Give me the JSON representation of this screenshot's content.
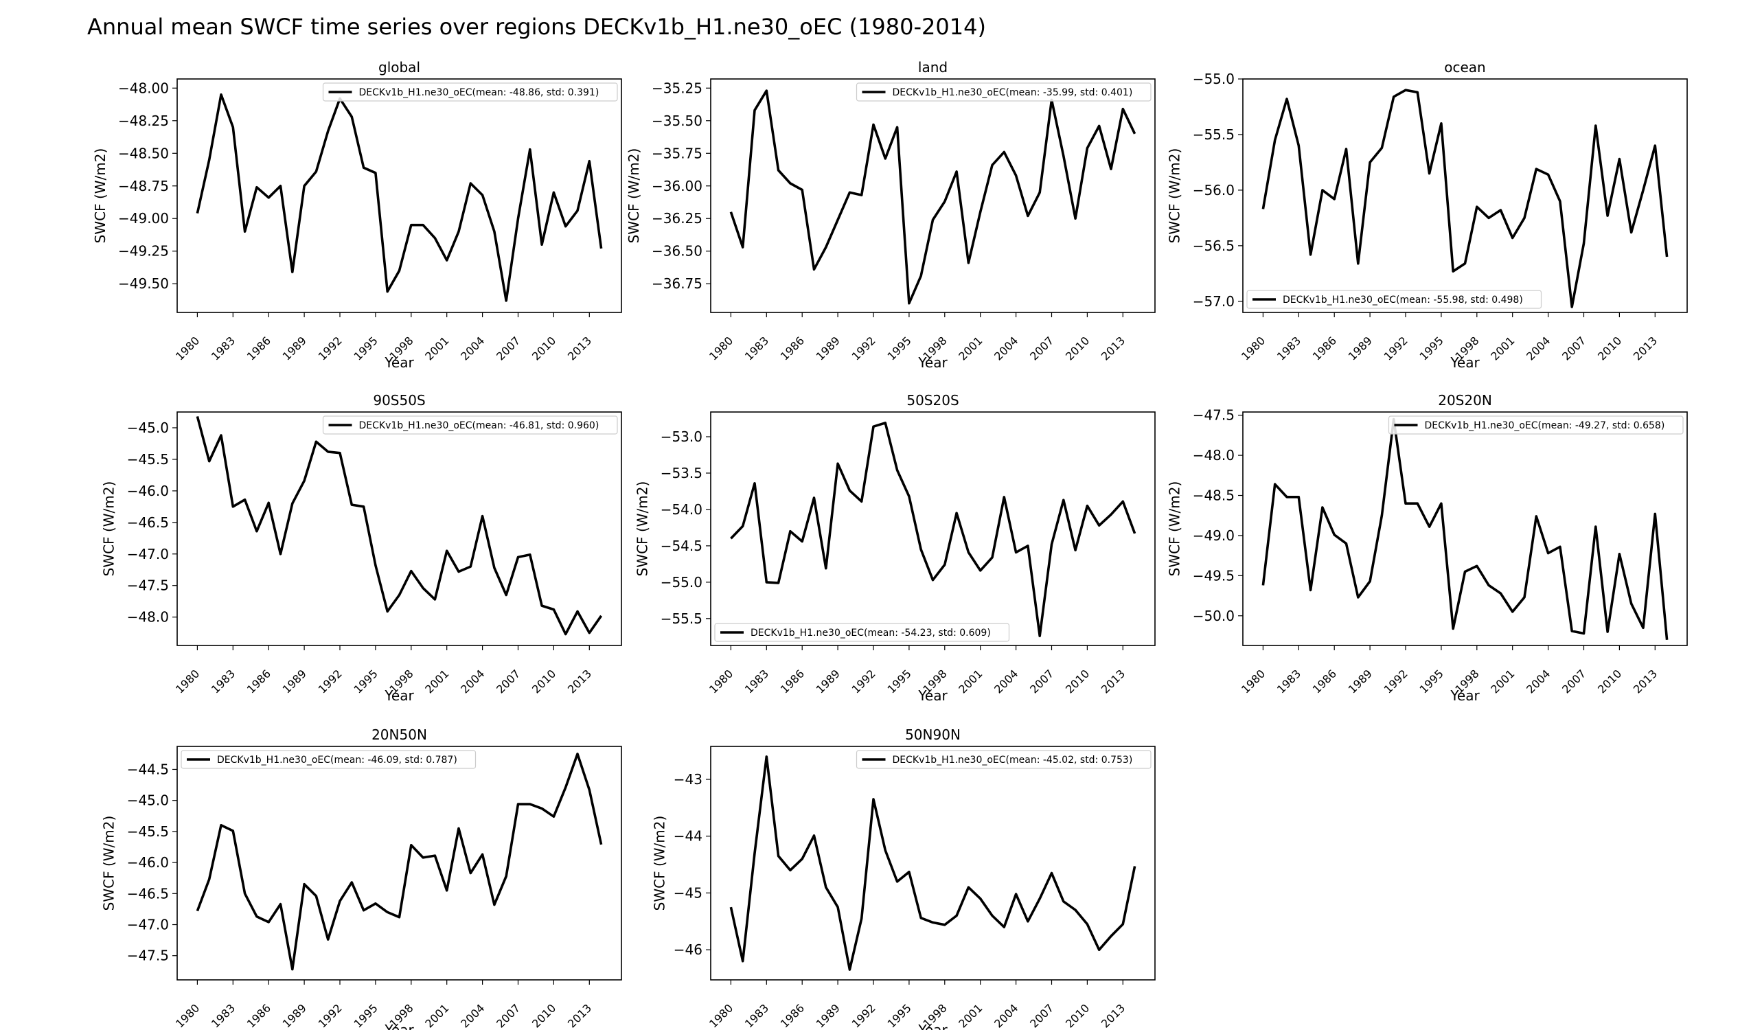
{
  "title": "Annual mean SWCF time series over regions DECKv1b_H1.ne30_oEC (1980-2014)",
  "chart_data": [
    {
      "type": "line",
      "title": "global",
      "xlabel": "Year",
      "ylabel": "SWCF (W/m2)",
      "xlim": [
        1978.3,
        2015.7
      ],
      "ylim": [
        -49.72,
        -47.93
      ],
      "xticks": [
        1980,
        1983,
        1986,
        1989,
        1992,
        1995,
        1998,
        2001,
        2004,
        2007,
        2010,
        2013
      ],
      "yticks": [
        -48.0,
        -48.25,
        -48.5,
        -48.75,
        -49.0,
        -49.25,
        -49.5
      ],
      "ytick_labels": [
        "−48.00",
        "−48.25",
        "−48.50",
        "−48.75",
        "−49.00",
        "−49.25",
        "−49.50"
      ],
      "legend_loc": "upper right",
      "series": [
        {
          "name": "DECKv1b_H1.ne30_oEC(mean: -48.86, std: 0.391)",
          "color": "#000000",
          "x": [
            1980,
            1981,
            1982,
            1983,
            1984,
            1985,
            1986,
            1987,
            1988,
            1989,
            1990,
            1991,
            1992,
            1993,
            1994,
            1995,
            1996,
            1997,
            1998,
            1999,
            2000,
            2001,
            2002,
            2003,
            2004,
            2005,
            2006,
            2007,
            2008,
            2009,
            2010,
            2011,
            2012,
            2013,
            2014
          ],
          "values": [
            -48.96,
            -48.55,
            -48.05,
            -48.3,
            -49.1,
            -48.76,
            -48.84,
            -48.75,
            -49.41,
            -48.75,
            -48.64,
            -48.33,
            -48.08,
            -48.22,
            -48.61,
            -48.65,
            -49.56,
            -49.4,
            -49.05,
            -49.05,
            -49.15,
            -49.32,
            -49.1,
            -48.73,
            -48.82,
            -49.1,
            -49.63,
            -49.0,
            -48.47,
            -49.2,
            -48.8,
            -49.06,
            -48.94,
            -48.56,
            -49.23
          ]
        }
      ]
    },
    {
      "type": "line",
      "title": "land",
      "xlabel": "Year",
      "ylabel": "SWCF (W/m2)",
      "xlim": [
        1978.3,
        2015.7
      ],
      "ylim": [
        -36.97,
        -35.18
      ],
      "xticks": [
        1980,
        1983,
        1986,
        1989,
        1992,
        1995,
        1998,
        2001,
        2004,
        2007,
        2010,
        2013
      ],
      "yticks": [
        -35.25,
        -35.5,
        -35.75,
        -36.0,
        -36.25,
        -36.5,
        -36.75
      ],
      "ytick_labels": [
        "−35.25",
        "−35.50",
        "−35.75",
        "−36.00",
        "−36.25",
        "−36.50",
        "−36.75"
      ],
      "legend_loc": "upper right",
      "series": [
        {
          "name": "DECKv1b_H1.ne30_oEC(mean: -35.99, std: 0.401)",
          "color": "#000000",
          "x": [
            1980,
            1981,
            1982,
            1983,
            1984,
            1985,
            1986,
            1987,
            1988,
            1989,
            1990,
            1991,
            1992,
            1993,
            1994,
            1995,
            1996,
            1997,
            1998,
            1999,
            2000,
            2001,
            2002,
            2003,
            2004,
            2005,
            2006,
            2007,
            2008,
            2009,
            2010,
            2011,
            2012,
            2013,
            2014
          ],
          "values": [
            -36.2,
            -36.47,
            -35.42,
            -35.27,
            -35.88,
            -35.98,
            -36.03,
            -36.64,
            -36.47,
            -36.26,
            -36.05,
            -36.07,
            -35.53,
            -35.79,
            -35.55,
            -36.9,
            -36.69,
            -36.26,
            -36.12,
            -35.89,
            -36.59,
            -36.2,
            -35.84,
            -35.74,
            -35.92,
            -36.23,
            -36.05,
            -35.34,
            -35.77,
            -36.25,
            -35.71,
            -35.54,
            -35.87,
            -35.41,
            -35.6
          ]
        }
      ]
    },
    {
      "type": "line",
      "title": "ocean",
      "xlabel": "Year",
      "ylabel": "SWCF (W/m2)",
      "xlim": [
        1978.3,
        2015.7
      ],
      "ylim": [
        -57.1,
        -55.0
      ],
      "xticks": [
        1980,
        1983,
        1986,
        1989,
        1992,
        1995,
        1998,
        2001,
        2004,
        2007,
        2010,
        2013
      ],
      "yticks": [
        -55.0,
        -55.5,
        -56.0,
        -56.5,
        -57.0
      ],
      "ytick_labels": [
        "−55.0",
        "−55.5",
        "−56.0",
        "−56.5",
        "−57.0"
      ],
      "legend_loc": "lower left",
      "series": [
        {
          "name": "DECKv1b_H1.ne30_oEC(mean: -55.98, std: 0.498)",
          "color": "#000000",
          "x": [
            1980,
            1981,
            1982,
            1983,
            1984,
            1985,
            1986,
            1987,
            1988,
            1989,
            1990,
            1991,
            1992,
            1993,
            1994,
            1995,
            1996,
            1997,
            1998,
            1999,
            2000,
            2001,
            2002,
            2003,
            2004,
            2005,
            2006,
            2007,
            2008,
            2009,
            2010,
            2011,
            2012,
            2013,
            2014
          ],
          "values": [
            -56.17,
            -55.55,
            -55.18,
            -55.6,
            -56.58,
            -56.0,
            -56.08,
            -55.63,
            -56.66,
            -55.75,
            -55.62,
            -55.16,
            -55.1,
            -55.12,
            -55.85,
            -55.4,
            -56.73,
            -56.66,
            -56.15,
            -56.25,
            -56.18,
            -56.43,
            -56.25,
            -55.81,
            -55.86,
            -56.1,
            -57.05,
            -56.48,
            -55.42,
            -56.23,
            -55.72,
            -56.38,
            -56.0,
            -55.6,
            -56.6
          ]
        }
      ]
    },
    {
      "type": "line",
      "title": "90S50S",
      "xlabel": "Year",
      "ylabel": "SWCF (W/m2)",
      "xlim": [
        1978.3,
        2015.7
      ],
      "ylim": [
        -48.45,
        -44.75
      ],
      "xticks": [
        1980,
        1983,
        1986,
        1989,
        1992,
        1995,
        1998,
        2001,
        2004,
        2007,
        2010,
        2013
      ],
      "yticks": [
        -45.0,
        -45.5,
        -46.0,
        -46.5,
        -47.0,
        -47.5,
        -48.0
      ],
      "ytick_labels": [
        "−45.0",
        "−45.5",
        "−46.0",
        "−46.5",
        "−47.0",
        "−47.5",
        "−48.0"
      ],
      "legend_loc": "upper right",
      "series": [
        {
          "name": "DECKv1b_H1.ne30_oEC(mean: -46.81, std: 0.960)",
          "color": "#000000",
          "x": [
            1980,
            1981,
            1982,
            1983,
            1984,
            1985,
            1986,
            1987,
            1988,
            1989,
            1990,
            1991,
            1992,
            1993,
            1994,
            1995,
            1996,
            1997,
            1998,
            1999,
            2000,
            2001,
            2002,
            2003,
            2004,
            2005,
            2006,
            2007,
            2008,
            2009,
            2010,
            2011,
            2012,
            2013,
            2014
          ],
          "values": [
            -44.82,
            -45.53,
            -45.12,
            -46.25,
            -46.14,
            -46.64,
            -46.19,
            -47.0,
            -46.2,
            -45.84,
            -45.22,
            -45.38,
            -45.4,
            -46.22,
            -46.25,
            -47.18,
            -47.91,
            -47.65,
            -47.27,
            -47.54,
            -47.72,
            -46.95,
            -47.28,
            -47.2,
            -46.4,
            -47.22,
            -47.65,
            -47.05,
            -47.01,
            -47.82,
            -47.88,
            -48.27,
            -47.91,
            -48.25,
            -47.98
          ]
        }
      ]
    },
    {
      "type": "line",
      "title": "50S20S",
      "xlabel": "Year",
      "ylabel": "SWCF (W/m2)",
      "xlim": [
        1978.3,
        2015.7
      ],
      "ylim": [
        -55.87,
        -52.66
      ],
      "xticks": [
        1980,
        1983,
        1986,
        1989,
        1992,
        1995,
        1998,
        2001,
        2004,
        2007,
        2010,
        2013
      ],
      "yticks": [
        -53.0,
        -53.5,
        -54.0,
        -54.5,
        -55.0,
        -55.5
      ],
      "ytick_labels": [
        "−53.0",
        "−53.5",
        "−54.0",
        "−54.5",
        "−55.0",
        "−55.5"
      ],
      "legend_loc": "lower left",
      "series": [
        {
          "name": "DECKv1b_H1.ne30_oEC(mean: -54.23, std: 0.609)",
          "color": "#000000",
          "x": [
            1980,
            1981,
            1982,
            1983,
            1984,
            1985,
            1986,
            1987,
            1988,
            1989,
            1990,
            1991,
            1992,
            1993,
            1994,
            1995,
            1996,
            1997,
            1998,
            1999,
            2000,
            2001,
            2002,
            2003,
            2004,
            2005,
            2006,
            2007,
            2008,
            2009,
            2010,
            2011,
            2012,
            2013,
            2014
          ],
          "values": [
            -54.4,
            -54.23,
            -53.64,
            -55.0,
            -55.01,
            -54.3,
            -54.44,
            -53.84,
            -54.81,
            -53.37,
            -53.74,
            -53.89,
            -52.86,
            -52.81,
            -53.46,
            -53.82,
            -54.55,
            -54.97,
            -54.76,
            -54.05,
            -54.59,
            -54.84,
            -54.66,
            -53.83,
            -54.59,
            -54.5,
            -55.74,
            -54.48,
            -53.87,
            -54.56,
            -53.95,
            -54.22,
            -54.07,
            -53.89,
            -54.33
          ]
        }
      ]
    },
    {
      "type": "line",
      "title": "20S20N",
      "xlabel": "Year",
      "ylabel": "SWCF (W/m2)",
      "xlim": [
        1978.3,
        2015.7
      ],
      "ylim": [
        -50.37,
        -47.46
      ],
      "xticks": [
        1980,
        1983,
        1986,
        1989,
        1992,
        1995,
        1998,
        2001,
        2004,
        2007,
        2010,
        2013
      ],
      "yticks": [
        -47.5,
        -48.0,
        -48.5,
        -49.0,
        -49.5,
        -50.0
      ],
      "ytick_labels": [
        "−47.5",
        "−48.0",
        "−48.5",
        "−49.0",
        "−49.5",
        "−50.0"
      ],
      "legend_loc": "upper right",
      "series": [
        {
          "name": "DECKv1b_H1.ne30_oEC(mean: -49.27, std: 0.658)",
          "color": "#000000",
          "x": [
            1980,
            1981,
            1982,
            1983,
            1984,
            1985,
            1986,
            1987,
            1988,
            1989,
            1990,
            1991,
            1992,
            1993,
            1994,
            1995,
            1996,
            1997,
            1998,
            1999,
            2000,
            2001,
            2002,
            2003,
            2004,
            2005,
            2006,
            2007,
            2008,
            2009,
            2010,
            2011,
            2012,
            2013,
            2014
          ],
          "values": [
            -49.62,
            -48.36,
            -48.52,
            -48.52,
            -49.68,
            -48.65,
            -48.99,
            -49.1,
            -49.77,
            -49.57,
            -48.75,
            -47.55,
            -48.6,
            -48.6,
            -48.89,
            -48.6,
            -50.16,
            -49.45,
            -49.38,
            -49.62,
            -49.72,
            -49.95,
            -49.77,
            -48.76,
            -49.22,
            -49.14,
            -50.19,
            -50.22,
            -48.89,
            -50.2,
            -49.23,
            -49.85,
            -50.15,
            -48.73,
            -50.3
          ]
        }
      ]
    },
    {
      "type": "line",
      "title": "20N50N",
      "xlabel": "Year",
      "ylabel": "SWCF (W/m2)",
      "xlim": [
        1978.3,
        2015.7
      ],
      "ylim": [
        -47.89,
        -44.13
      ],
      "xticks": [
        1980,
        1983,
        1986,
        1989,
        1992,
        1995,
        1998,
        2001,
        2004,
        2007,
        2010,
        2013
      ],
      "yticks": [
        -44.5,
        -45.0,
        -45.5,
        -46.0,
        -46.5,
        -47.0,
        -47.5
      ],
      "ytick_labels": [
        "−44.5",
        "−45.0",
        "−45.5",
        "−46.0",
        "−46.5",
        "−47.0",
        "−47.5"
      ],
      "legend_loc": "upper left",
      "series": [
        {
          "name": "DECKv1b_H1.ne30_oEC(mean: -46.09, std: 0.787)",
          "color": "#000000",
          "x": [
            1980,
            1981,
            1982,
            1983,
            1984,
            1985,
            1986,
            1987,
            1988,
            1989,
            1990,
            1991,
            1992,
            1993,
            1994,
            1995,
            1996,
            1997,
            1998,
            1999,
            2000,
            2001,
            2002,
            2003,
            2004,
            2005,
            2006,
            2007,
            2008,
            2009,
            2010,
            2011,
            2012,
            2013,
            2014
          ],
          "values": [
            -46.78,
            -46.27,
            -45.4,
            -45.49,
            -46.5,
            -46.87,
            -46.96,
            -46.67,
            -47.72,
            -46.35,
            -46.54,
            -47.24,
            -46.62,
            -46.32,
            -46.77,
            -46.66,
            -46.8,
            -46.88,
            -45.72,
            -45.92,
            -45.89,
            -46.45,
            -45.45,
            -46.17,
            -45.87,
            -46.68,
            -46.22,
            -45.06,
            -45.06,
            -45.13,
            -45.26,
            -44.79,
            -44.25,
            -44.83,
            -45.71
          ]
        }
      ]
    },
    {
      "type": "line",
      "title": "50N90N",
      "xlabel": "Year",
      "ylabel": "SWCF (W/m2)",
      "xlim": [
        1978.3,
        2015.7
      ],
      "ylim": [
        -46.53,
        -42.42
      ],
      "xticks": [
        1980,
        1983,
        1986,
        1989,
        1992,
        1995,
        1998,
        2001,
        2004,
        2007,
        2010,
        2013
      ],
      "yticks": [
        -43,
        -44,
        -45,
        -46
      ],
      "ytick_labels": [
        "−43",
        "−44",
        "−45",
        "−46"
      ],
      "legend_loc": "upper right",
      "series": [
        {
          "name": "DECKv1b_H1.ne30_oEC(mean: -45.02, std: 0.753)",
          "color": "#000000",
          "x": [
            1980,
            1981,
            1982,
            1983,
            1984,
            1985,
            1986,
            1987,
            1988,
            1989,
            1990,
            1991,
            1992,
            1993,
            1994,
            1995,
            1996,
            1997,
            1998,
            1999,
            2000,
            2001,
            2002,
            2003,
            2004,
            2005,
            2006,
            2007,
            2008,
            2009,
            2010,
            2011,
            2012,
            2013,
            2014
          ],
          "values": [
            -45.25,
            -46.2,
            -44.3,
            -42.6,
            -44.35,
            -44.6,
            -44.4,
            -43.99,
            -44.9,
            -45.25,
            -46.35,
            -45.45,
            -43.35,
            -44.25,
            -44.8,
            -44.63,
            -45.44,
            -45.52,
            -45.56,
            -45.4,
            -44.9,
            -45.1,
            -45.4,
            -45.6,
            -45.02,
            -45.5,
            -45.1,
            -44.65,
            -45.15,
            -45.3,
            -45.55,
            -46.0,
            -45.76,
            -45.55,
            -44.53
          ]
        }
      ]
    }
  ]
}
